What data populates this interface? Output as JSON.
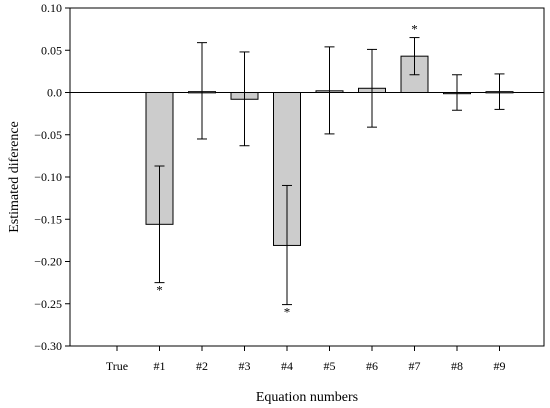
{
  "chart_data": {
    "type": "bar",
    "xlabel": "Equation numbers",
    "ylabel": "Estimated diference",
    "ylim": [
      -0.3,
      0.1
    ],
    "yticks": [
      "0.10",
      "0.05",
      "0.0",
      "−0.05",
      "−0.10",
      "−0.15",
      "−0.20",
      "−0.25",
      "−0.30"
    ],
    "ytick_values": [
      0.1,
      0.05,
      0.0,
      -0.05,
      -0.1,
      -0.15,
      -0.2,
      -0.25,
      -0.3
    ],
    "categories": [
      "True",
      "#1",
      "#2",
      "#3",
      "#4",
      "#5",
      "#6",
      "#7",
      "#8",
      "#9"
    ],
    "values": [
      null,
      -0.156,
      0.001,
      -0.008,
      -0.181,
      0.002,
      0.005,
      0.043,
      0.0,
      0.001
    ],
    "error_low": [
      null,
      -0.225,
      -0.055,
      -0.063,
      -0.251,
      -0.049,
      -0.041,
      0.021,
      -0.021,
      -0.02
    ],
    "error_high": [
      null,
      -0.087,
      0.059,
      0.048,
      -0.11,
      0.054,
      0.051,
      0.065,
      0.021,
      0.022
    ],
    "significance_marker": "*",
    "significant": [
      false,
      true,
      false,
      false,
      true,
      false,
      false,
      true,
      false,
      false
    ],
    "grid": false,
    "bar_color": "#cccccc"
  }
}
